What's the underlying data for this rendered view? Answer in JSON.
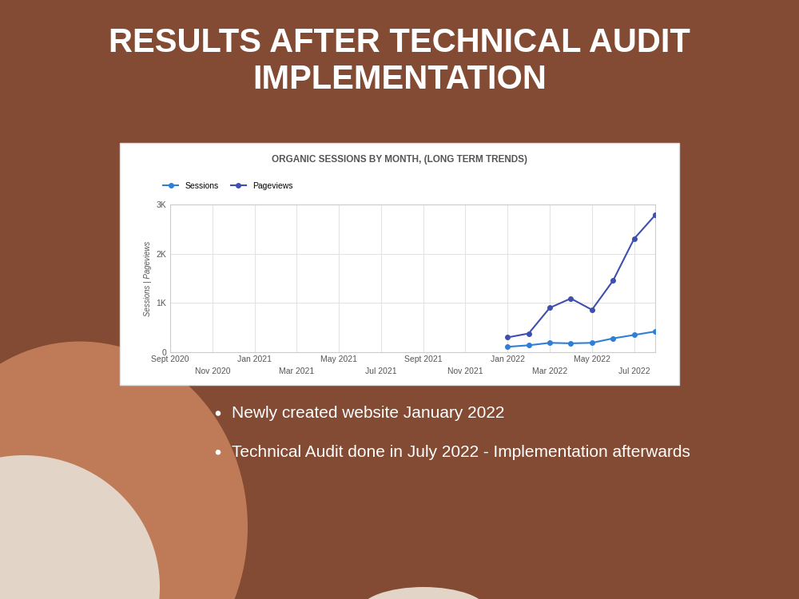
{
  "slide": {
    "title": "RESULTS AFTER TECHNICAL AUDIT IMPLEMENTATION",
    "bullets": [
      "Newly created website January 2022",
      "Technical Audit done in July 2022 - Implementation afterwards"
    ]
  },
  "chart_data": {
    "type": "line",
    "title": "ORGANIC SESSIONS BY MONTH, (LONG TERM TRENDS)",
    "y_label": "Sessions | Pageviews",
    "categories": [
      "Sept 2020",
      null,
      "Nov 2020",
      null,
      "Jan 2021",
      null,
      "Mar 2021",
      null,
      "May 2021",
      null,
      "Jul 2021",
      null,
      "Sept 2021",
      null,
      "Nov 2021",
      null,
      "Jan 2022",
      null,
      "Mar 2022",
      null,
      "May 2022",
      null,
      "Jul 2022",
      null
    ],
    "series": [
      {
        "name": "Sessions",
        "color": "#2f7fd6",
        "marker": "o",
        "line_style": "solid",
        "values": [
          null,
          null,
          null,
          null,
          null,
          null,
          null,
          null,
          null,
          null,
          null,
          null,
          null,
          null,
          null,
          null,
          110,
          140,
          190,
          180,
          190,
          280,
          350,
          420
        ]
      },
      {
        "name": "Pageviews",
        "color": "#3e4fae",
        "marker": "o",
        "line_style": "solid",
        "values": [
          null,
          null,
          null,
          null,
          null,
          null,
          null,
          null,
          null,
          null,
          null,
          null,
          null,
          null,
          null,
          null,
          300,
          380,
          900,
          1090,
          860,
          1450,
          2300,
          2780
        ]
      }
    ],
    "ylim": [
      0,
      3000
    ],
    "yticks": [
      0,
      {
        "value": 1000,
        "label": "1K"
      },
      {
        "value": 2000,
        "label": "2K"
      },
      {
        "value": 3000,
        "label": "3K"
      }
    ],
    "grid": true,
    "legend": "upper left"
  }
}
